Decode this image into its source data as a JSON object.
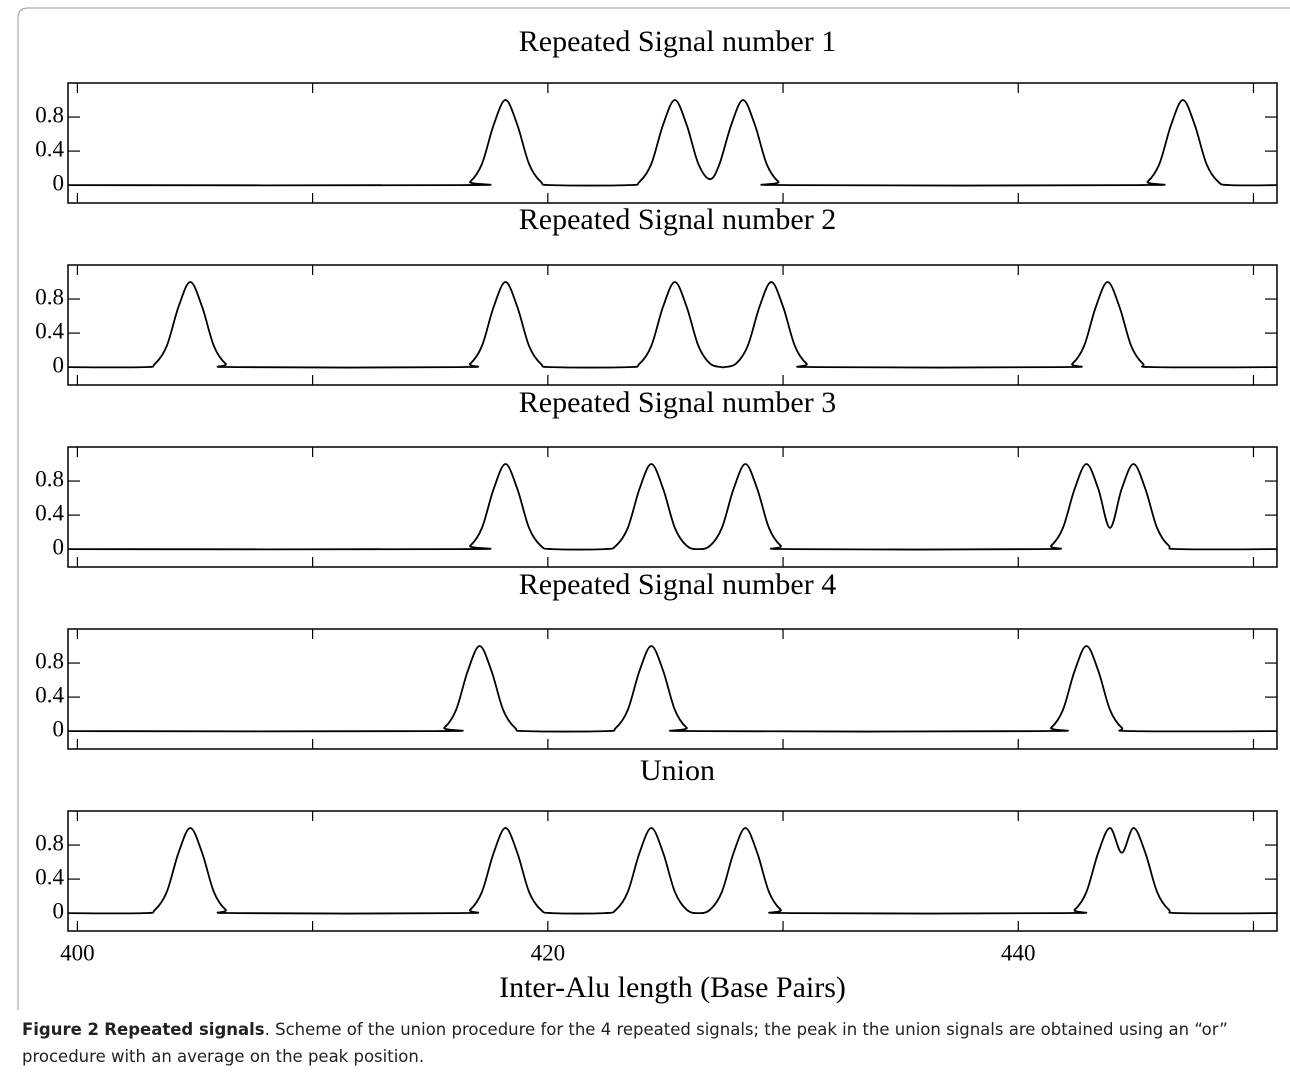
{
  "chart_data": [
    {
      "type": "line",
      "title": "Repeated Signal number 1",
      "xlim": [
        399.6,
        451.0
      ],
      "xticks": [
        400,
        420,
        440
      ],
      "xminorticks": [
        410,
        430,
        450
      ],
      "ylim": [
        -0.21,
        1.2
      ],
      "yticks": [
        0,
        0.4,
        0.8
      ],
      "series": [
        {
          "color": "#000000",
          "x": [
            399.6,
            416.2,
            416.7,
            417.2,
            417.7,
            418.2,
            418.7,
            419.2,
            419.7,
            420.2,
            423.4,
            423.9,
            424.4,
            424.9,
            425.4,
            425.9,
            426.4,
            426.9,
            427.3,
            427.8,
            428.3,
            428.8,
            429.3,
            429.8,
            430.3,
            445.0,
            445.5,
            446.0,
            446.5,
            447.0,
            447.5,
            448.0,
            448.5,
            449.0,
            451.0
          ],
          "values": [
            0,
            0,
            0.04,
            0.25,
            0.71,
            1,
            0.71,
            0.25,
            0.04,
            0,
            0,
            0.04,
            0.25,
            0.71,
            1,
            0.71,
            0.25,
            0.07,
            0.25,
            0.71,
            1,
            0.71,
            0.25,
            0.04,
            0,
            0,
            0.04,
            0.25,
            0.71,
            1,
            0.71,
            0.25,
            0.04,
            0,
            0
          ]
        }
      ]
    },
    {
      "type": "line",
      "title": "Repeated Signal number 2",
      "xlim": [
        399.6,
        451.0
      ],
      "xticks": [
        400,
        420,
        440
      ],
      "xminorticks": [
        410,
        430,
        450
      ],
      "ylim": [
        -0.21,
        1.2
      ],
      "yticks": [
        0,
        0.4,
        0.8
      ],
      "series": [
        {
          "color": "#000000",
          "x": [
            399.6,
            402.8,
            403.3,
            403.8,
            404.3,
            404.8,
            405.3,
            405.8,
            406.3,
            406.8,
            416.2,
            416.7,
            417.2,
            417.7,
            418.2,
            418.7,
            419.2,
            419.7,
            420.2,
            423.4,
            423.9,
            424.4,
            424.9,
            425.4,
            425.9,
            426.4,
            426.9,
            427.4,
            427.5,
            428.0,
            428.5,
            429.0,
            429.5,
            430.0,
            430.5,
            431.0,
            431.5,
            441.8,
            442.3,
            442.8,
            443.3,
            443.8,
            444.3,
            444.8,
            445.3,
            445.8,
            451.0
          ],
          "values": [
            0,
            0,
            0.04,
            0.25,
            0.71,
            1,
            0.71,
            0.25,
            0.04,
            0,
            0,
            0.04,
            0.25,
            0.71,
            1,
            0.71,
            0.25,
            0.04,
            0,
            0,
            0.04,
            0.25,
            0.71,
            1,
            0.71,
            0.25,
            0.04,
            0,
            0,
            0.04,
            0.25,
            0.71,
            1,
            0.71,
            0.25,
            0.04,
            0,
            0,
            0.04,
            0.25,
            0.71,
            1,
            0.71,
            0.25,
            0.04,
            0,
            0
          ]
        }
      ]
    },
    {
      "type": "line",
      "title": "Repeated Signal number 3",
      "xlim": [
        399.6,
        451.0
      ],
      "xticks": [
        400,
        420,
        440
      ],
      "xminorticks": [
        410,
        430,
        450
      ],
      "ylim": [
        -0.21,
        1.2
      ],
      "yticks": [
        0,
        0.4,
        0.8
      ],
      "series": [
        {
          "color": "#000000",
          "x": [
            399.6,
            416.2,
            416.7,
            417.2,
            417.7,
            418.2,
            418.7,
            419.2,
            419.7,
            420.2,
            422.4,
            422.9,
            423.4,
            423.9,
            424.4,
            424.9,
            425.4,
            425.9,
            426.4,
            426.9,
            427.4,
            427.9,
            428.4,
            428.9,
            429.4,
            429.9,
            430.4,
            440.9,
            441.4,
            441.9,
            442.4,
            442.9,
            443.4,
            443.9,
            444.4,
            444.9,
            445.4,
            445.9,
            446.4,
            446.9,
            451.0
          ],
          "values": [
            0,
            0,
            0.04,
            0.25,
            0.71,
            1,
            0.71,
            0.25,
            0.04,
            0,
            0,
            0.04,
            0.25,
            0.71,
            1,
            0.71,
            0.25,
            0.04,
            0,
            0.04,
            0.25,
            0.71,
            1,
            0.71,
            0.25,
            0.04,
            0,
            0,
            0.04,
            0.25,
            0.71,
            1,
            0.71,
            0.25,
            0.71,
            1,
            0.71,
            0.25,
            0.04,
            0,
            0
          ]
        }
      ]
    },
    {
      "type": "line",
      "title": "Repeated Signal number 4",
      "xlim": [
        399.6,
        451.0
      ],
      "xticks": [
        400,
        420,
        440
      ],
      "xminorticks": [
        410,
        430,
        450
      ],
      "ylim": [
        -0.21,
        1.2
      ],
      "yticks": [
        0,
        0.4,
        0.8
      ],
      "series": [
        {
          "color": "#000000",
          "x": [
            399.6,
            415.1,
            415.6,
            416.1,
            416.6,
            417.1,
            417.6,
            418.1,
            418.6,
            419.1,
            422.4,
            422.9,
            423.4,
            423.9,
            424.4,
            424.9,
            425.4,
            425.9,
            426.4,
            440.9,
            441.4,
            441.9,
            442.4,
            442.9,
            443.4,
            443.9,
            444.4,
            444.9,
            451.0
          ],
          "values": [
            0,
            0,
            0.04,
            0.25,
            0.71,
            1,
            0.71,
            0.25,
            0.04,
            0,
            0,
            0.04,
            0.25,
            0.71,
            1,
            0.71,
            0.25,
            0.04,
            0,
            0,
            0.04,
            0.25,
            0.71,
            1,
            0.71,
            0.25,
            0.04,
            0,
            0
          ]
        }
      ]
    },
    {
      "type": "line",
      "title": "Union",
      "xlabel": "Inter-Alu length (Base Pairs)",
      "xlim": [
        399.6,
        451.0
      ],
      "xticks": [
        400,
        420,
        440
      ],
      "xminorticks": [
        410,
        430,
        450
      ],
      "ylim": [
        -0.21,
        1.2
      ],
      "yticks": [
        0,
        0.4,
        0.8
      ],
      "series": [
        {
          "color": "#000000",
          "x": [
            399.6,
            402.8,
            403.3,
            403.8,
            404.3,
            404.8,
            405.3,
            405.8,
            406.3,
            406.8,
            416.2,
            416.7,
            417.2,
            417.7,
            418.2,
            418.7,
            419.2,
            419.7,
            420.2,
            422.4,
            422.9,
            423.4,
            423.9,
            424.4,
            424.9,
            425.4,
            425.9,
            426.4,
            426.9,
            427.4,
            427.9,
            428.4,
            428.9,
            429.4,
            429.9,
            430.4,
            441.9,
            442.4,
            442.9,
            443.4,
            443.9,
            444.4,
            444.9,
            445.4,
            445.9,
            446.4,
            446.9,
            451.0
          ],
          "values": [
            0,
            0,
            0.04,
            0.25,
            0.71,
            1,
            0.71,
            0.25,
            0.04,
            0,
            0,
            0.04,
            0.25,
            0.71,
            1,
            0.71,
            0.25,
            0.04,
            0,
            0,
            0.04,
            0.25,
            0.71,
            1,
            0.71,
            0.25,
            0.04,
            0,
            0.04,
            0.25,
            0.71,
            1,
            0.71,
            0.25,
            0.04,
            0,
            0,
            0.04,
            0.25,
            0.71,
            1,
            0.71,
            1,
            0.71,
            0.25,
            0.04,
            0,
            0
          ]
        }
      ]
    }
  ],
  "caption": {
    "label": "Figure 2",
    "title": "Repeated signals",
    "text": ". Scheme of the union procedure for the 4 repeated signals; the peak in the union signals are obtained using an “or” procedure with an average on the peak position."
  }
}
